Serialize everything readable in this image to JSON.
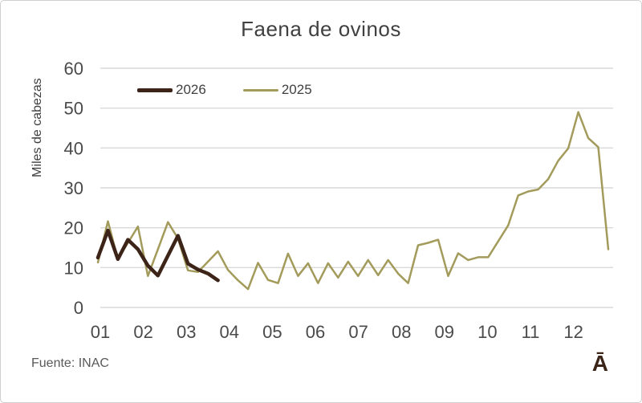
{
  "chart_data": {
    "type": "line",
    "title": "Faena de ovinos",
    "ylabel": "Miles de cabezas",
    "xlabel": "",
    "x_tick_labels": [
      "01",
      "02",
      "03",
      "04",
      "05",
      "06",
      "07",
      "08",
      "09",
      "10",
      "11",
      "12"
    ],
    "y_ticks": [
      0,
      10,
      20,
      30,
      40,
      50,
      60
    ],
    "ylim": [
      0,
      60
    ],
    "grid": true,
    "legend_position": "top-left inside plot area",
    "x_unit": "weekly points across months 01-12",
    "series": [
      {
        "name": "2026",
        "color": "#3d2418",
        "stroke_width": 4.5,
        "values": [
          12.5,
          19.3,
          12.1,
          17.0,
          14.6,
          10.5,
          8.0,
          13.0,
          18.0,
          11.0,
          9.5,
          8.5,
          6.8
        ]
      },
      {
        "name": "2025",
        "color": "#a39b5b",
        "stroke_width": 2.5,
        "values": [
          11.3,
          21.6,
          12.1,
          16.2,
          20.3,
          7.9,
          14.6,
          21.4,
          17.3,
          9.3,
          8.9,
          11.5,
          14.1,
          9.4,
          6.8,
          4.6,
          11.2,
          6.9,
          6.1,
          13.5,
          7.9,
          11.1,
          6.1,
          11.1,
          7.5,
          11.5,
          7.9,
          11.9,
          8.1,
          11.9,
          8.5,
          6.1,
          15.6,
          16.2,
          17.0,
          7.9,
          13.6,
          11.9,
          12.6,
          12.6,
          16.6,
          20.6,
          28.1,
          29.1,
          29.6,
          32.2,
          36.8,
          39.9,
          49.0,
          42.5,
          40.2,
          14.6
        ]
      }
    ]
  },
  "footer": {
    "source": "Fuente: INAC",
    "watermark": "Ā"
  },
  "theme": {
    "grid_color": "#d9d9d9",
    "tick_color": "#4a4a4a",
    "background": "#ffffff"
  }
}
